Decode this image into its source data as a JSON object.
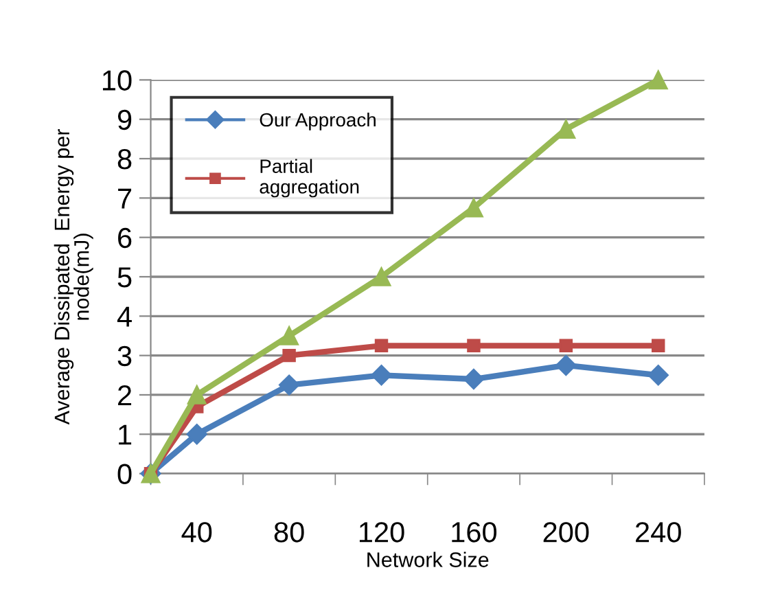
{
  "chart_data": {
    "type": "line",
    "xlabel": "Network Size",
    "ylabel": "Average Dissipated  Energy per\nnode(mJ)",
    "x": [
      20,
      40,
      80,
      120,
      160,
      200,
      240
    ],
    "series": [
      {
        "name": "Our Approach",
        "color": "#4a7ebb",
        "marker": "diamond",
        "values": [
          0,
          1,
          2.25,
          2.5,
          2.4,
          2.75,
          2.5
        ]
      },
      {
        "name": "Partial\naggregation",
        "color": "#be4b48",
        "marker": "square",
        "values": [
          0,
          1.7,
          3,
          3.25,
          3.25,
          3.25,
          3.25
        ]
      },
      {
        "color": "#98b954",
        "marker": "triangle",
        "values": [
          0,
          2,
          3.5,
          5,
          6.75,
          8.75,
          10
        ]
      }
    ],
    "xlim": [
      20,
      260
    ],
    "xticks": [
      {
        "value": 20,
        "label": null
      },
      40,
      {
        "value": 60,
        "label": null
      },
      80,
      {
        "value": 100,
        "label": null
      },
      120,
      {
        "value": 140,
        "label": null
      },
      160,
      {
        "value": 180,
        "label": null
      },
      200,
      {
        "value": 220,
        "label": null
      },
      240,
      {
        "value": 260,
        "label": null
      }
    ],
    "ylim": [
      0,
      10
    ],
    "yticks": [
      0,
      1,
      2,
      3,
      4,
      5,
      6,
      7,
      8,
      9,
      10
    ],
    "grid": "y",
    "legend": "top left",
    "line_style": "solid"
  }
}
